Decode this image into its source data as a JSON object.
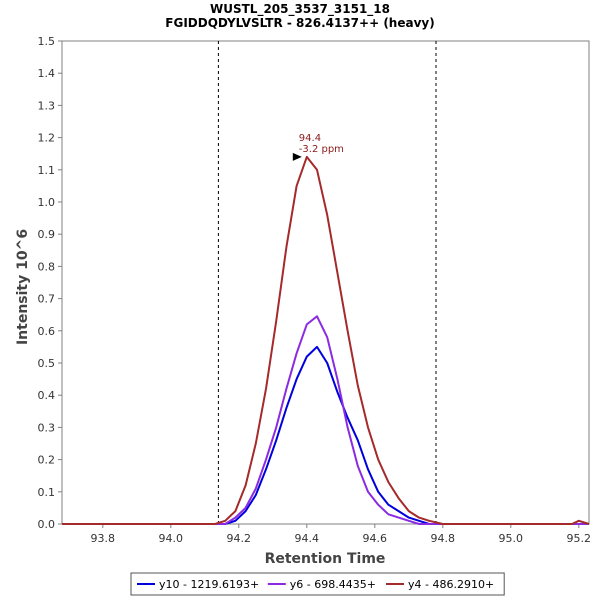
{
  "chart_data": {
    "type": "line",
    "title": "WUSTL_205_3537_3151_18",
    "subtitle": "FGIDDQDYLVSLTR - 826.4137++ (heavy)",
    "xlabel": "Retention Time",
    "ylabel": "Intensity 10^6",
    "xlim": [
      93.68,
      95.23
    ],
    "ylim": [
      0,
      1.5
    ],
    "x_ticks": [
      93.8,
      94.0,
      94.2,
      94.4,
      94.6,
      94.8,
      95.0,
      95.2
    ],
    "x_tick_labels": [
      "93.8",
      "94.0",
      "94.2",
      "94.4",
      "94.6",
      "94.8",
      "95.0",
      "95.2"
    ],
    "y_ticks": [
      0.0,
      0.1,
      0.2,
      0.3,
      0.4,
      0.5,
      0.6,
      0.7,
      0.8,
      0.9,
      1.0,
      1.1,
      1.2,
      1.3,
      1.4,
      1.5
    ],
    "y_tick_labels": [
      "0.0",
      "0.1",
      "0.2",
      "0.3",
      "0.4",
      "0.5",
      "0.6",
      "0.7",
      "0.8",
      "0.9",
      "1.0",
      "1.1",
      "1.2",
      "1.3",
      "1.4",
      "1.5"
    ],
    "grid": false,
    "legend_position": "bottom",
    "boundaries": [
      94.14,
      94.78
    ],
    "annotation": {
      "x": 94.4,
      "y": 1.14,
      "lines": [
        "94.4",
        "-3.2 ppm"
      ]
    },
    "series": [
      {
        "name": "y10 - 1219.6193+",
        "color": "#0000dd",
        "x": [
          93.68,
          94.1,
          94.13,
          94.16,
          94.19,
          94.22,
          94.25,
          94.28,
          94.31,
          94.34,
          94.37,
          94.4,
          94.43,
          94.46,
          94.49,
          94.52,
          94.55,
          94.58,
          94.61,
          94.64,
          94.67,
          94.7,
          94.73,
          94.76,
          95.23
        ],
        "y": [
          0.0,
          0.0,
          0.0,
          0.0,
          0.01,
          0.04,
          0.09,
          0.17,
          0.26,
          0.36,
          0.45,
          0.52,
          0.55,
          0.5,
          0.41,
          0.33,
          0.26,
          0.17,
          0.1,
          0.06,
          0.04,
          0.02,
          0.01,
          0.0,
          0.0
        ]
      },
      {
        "name": "y6 - 698.4435+",
        "color": "#8a2be2",
        "x": [
          93.68,
          94.1,
          94.13,
          94.16,
          94.19,
          94.22,
          94.25,
          94.28,
          94.31,
          94.34,
          94.37,
          94.4,
          94.43,
          94.46,
          94.49,
          94.52,
          94.55,
          94.58,
          94.61,
          94.64,
          94.67,
          94.7,
          94.73,
          94.76,
          95.23
        ],
        "y": [
          0.0,
          0.0,
          0.0,
          0.0,
          0.02,
          0.05,
          0.11,
          0.2,
          0.3,
          0.42,
          0.53,
          0.62,
          0.645,
          0.58,
          0.45,
          0.3,
          0.18,
          0.1,
          0.06,
          0.03,
          0.02,
          0.01,
          0.0,
          0.0,
          0.0
        ]
      },
      {
        "name": "y4 - 486.2910+",
        "color": "#a52a2a",
        "x": [
          93.68,
          94.1,
          94.13,
          94.16,
          94.19,
          94.22,
          94.25,
          94.28,
          94.31,
          94.34,
          94.37,
          94.4,
          94.43,
          94.46,
          94.49,
          94.52,
          94.55,
          94.58,
          94.61,
          94.64,
          94.67,
          94.7,
          94.73,
          94.76,
          94.8,
          95.18,
          95.2,
          95.23
        ],
        "y": [
          0.0,
          0.0,
          0.0,
          0.01,
          0.04,
          0.12,
          0.25,
          0.42,
          0.63,
          0.86,
          1.05,
          1.14,
          1.1,
          0.96,
          0.78,
          0.6,
          0.43,
          0.3,
          0.2,
          0.13,
          0.08,
          0.04,
          0.02,
          0.01,
          0.0,
          0.0,
          0.01,
          0.0
        ]
      }
    ]
  }
}
